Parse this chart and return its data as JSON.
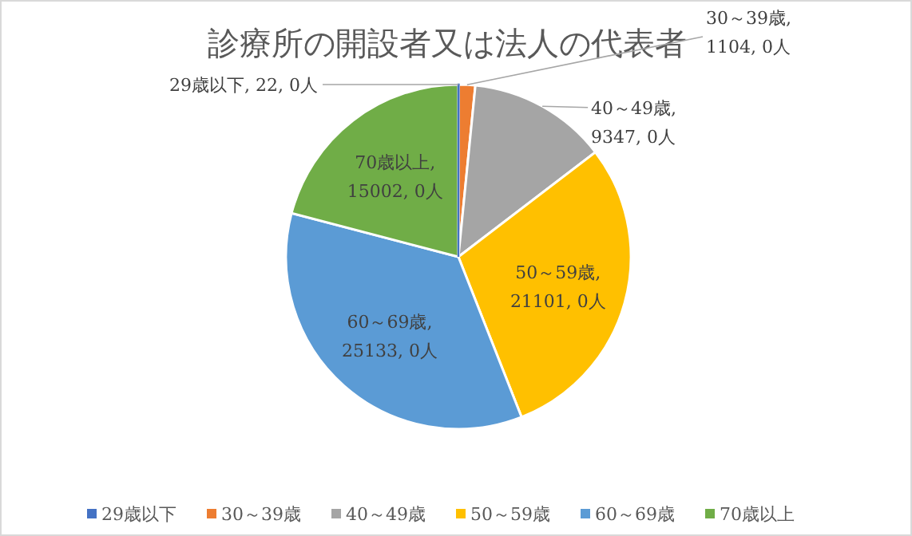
{
  "chart_data": {
    "type": "pie",
    "title": "診療所の開設者又は法人の代表者",
    "categories": [
      "29歳以下",
      "30～39歳",
      "40～49歳",
      "50～59歳",
      "60～69歳",
      "70歳以上"
    ],
    "values": [
      22,
      1104,
      9347,
      21101,
      25133,
      15002
    ],
    "value_labels": [
      "29歳以下, 22, 0人",
      "30～39歳, 1104, 0人",
      "40～49歳, 9347, 0人",
      "50～59歳, 21101, 0人",
      "60～69歳, 25133, 0人",
      "70歳以上, 15002, 0人"
    ],
    "colors": [
      "#4472c4",
      "#ed7d31",
      "#a5a5a5",
      "#ffc000",
      "#5b9bd5",
      "#70ad47"
    ],
    "legend": "bottom"
  }
}
